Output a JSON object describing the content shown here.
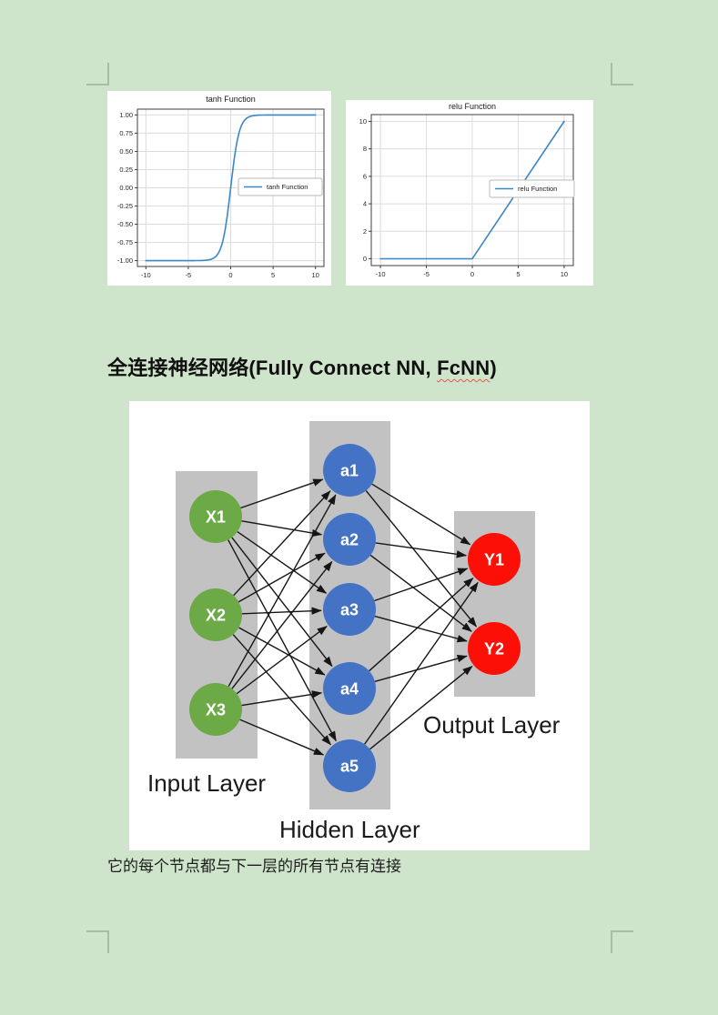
{
  "page": {
    "background_color": "#cfe5cb",
    "margin_mark_color": "#a7bda7"
  },
  "chart_data": [
    {
      "type": "line",
      "title": "tanh Function",
      "legend": [
        "tanh Function"
      ],
      "legend_position": "center right",
      "series": [
        {
          "name": "tanh Function",
          "function": "tanh",
          "x_range": [
            -10,
            10
          ]
        }
      ],
      "xlim": [
        -11,
        11
      ],
      "ylim": [
        -1.08,
        1.08
      ],
      "xtick_values": [
        -10,
        -5,
        0,
        5,
        10
      ],
      "xtick_labels": [
        "-10",
        "-5",
        "0",
        "5",
        "10"
      ],
      "ytick_values": [
        1.0,
        0.75,
        0.5,
        0.25,
        0.0,
        -0.25,
        -0.5,
        -0.75,
        -1.0
      ],
      "ytick_labels": [
        "1.00",
        "0.75",
        "0.50",
        "0.25",
        "0.00",
        "-0.25",
        "-0.50",
        "-0.75",
        "-1.00"
      ],
      "grid": true,
      "line_color": "#3a87c8"
    },
    {
      "type": "line",
      "title": "relu Function",
      "legend": [
        "relu Function"
      ],
      "legend_position": "center right",
      "series": [
        {
          "name": "relu Function",
          "function": "relu",
          "x_range": [
            -10,
            10
          ]
        }
      ],
      "xlim": [
        -11,
        11
      ],
      "ylim": [
        -0.5,
        10.5
      ],
      "xtick_values": [
        -10,
        -5,
        0,
        5,
        10
      ],
      "xtick_labels": [
        "-10",
        "-5",
        "0",
        "5",
        "10"
      ],
      "ytick_values": [
        0,
        2,
        4,
        6,
        8,
        10
      ],
      "ytick_labels": [
        "0",
        "2",
        "4",
        "6",
        "8",
        "10"
      ],
      "grid": true,
      "line_color": "#3a87c8"
    }
  ],
  "heading": {
    "prefix": "全连接神经网络(Fully Connect NN, ",
    "highlight": "FcNN",
    "suffix": ")"
  },
  "diagram": {
    "connectivity": "fully-connected",
    "panel_color": "#c2c2c2",
    "arrow_color": "#151515",
    "node_label_color": "#ffffff",
    "layer_label_color": "#1a1a1a",
    "layers": [
      {
        "label": "Input Layer",
        "node_color": "#6caa47",
        "nodes": [
          "X1",
          "X2",
          "X3"
        ]
      },
      {
        "label": "Hidden Layer",
        "node_color": "#4472c4",
        "nodes": [
          "a1",
          "a2",
          "a3",
          "a4",
          "a5"
        ]
      },
      {
        "label": "Output Layer",
        "node_color": "#fb0f07",
        "nodes": [
          "Y1",
          "Y2"
        ]
      }
    ]
  },
  "caption": "它的每个节点都与下一层的所有节点有连接"
}
